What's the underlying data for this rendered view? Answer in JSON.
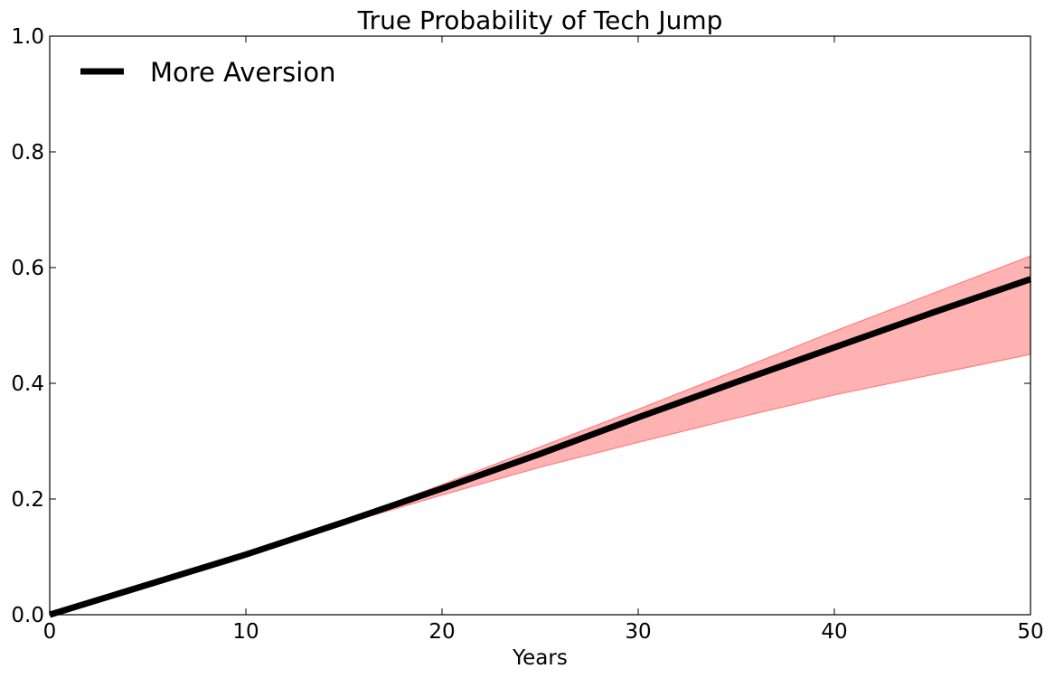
{
  "chart_data": {
    "type": "line",
    "title": "True Probability of Tech Jump",
    "xlabel": "Years",
    "ylabel": "",
    "xlim": [
      0,
      50
    ],
    "ylim": [
      0,
      1.0
    ],
    "xticks": [
      0,
      10,
      20,
      30,
      40,
      50
    ],
    "xtick_labels": [
      "0",
      "10",
      "20",
      "30",
      "40",
      "50"
    ],
    "yticks": [
      0.0,
      0.2,
      0.4,
      0.6,
      0.8,
      1.0
    ],
    "ytick_labels": [
      "0.0",
      "0.2",
      "0.4",
      "0.6",
      "0.8",
      "1.0"
    ],
    "grid": false,
    "legend_position": "top-left",
    "series": [
      {
        "name": "More Aversion",
        "color": "#000000",
        "x": [
          0,
          5,
          10,
          15,
          20,
          25,
          30,
          35,
          40,
          45,
          50
        ],
        "y": [
          0.0,
          0.052,
          0.104,
          0.16,
          0.218,
          0.278,
          0.341,
          0.402,
          0.462,
          0.522,
          0.58
        ]
      }
    ],
    "band": {
      "color": "#ff7f7f",
      "x": [
        0,
        5,
        10,
        15,
        20,
        25,
        30,
        35,
        40,
        45,
        50
      ],
      "upper": [
        0.0,
        0.052,
        0.104,
        0.162,
        0.225,
        0.29,
        0.355,
        0.422,
        0.49,
        0.555,
        0.62
      ],
      "lower": [
        0.0,
        0.052,
        0.104,
        0.157,
        0.207,
        0.255,
        0.298,
        0.34,
        0.38,
        0.415,
        0.45
      ]
    }
  }
}
